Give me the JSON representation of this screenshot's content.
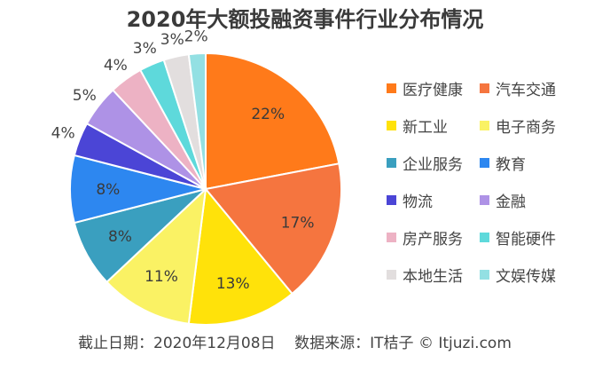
{
  "chart_data": {
    "type": "pie",
    "title": "2020年大额投融资事件行业分布情况",
    "unit": "%",
    "legend_position": "right",
    "slices": [
      {
        "label": "医疗健康",
        "value": 22,
        "color": "#FF7A1A"
      },
      {
        "label": "汽车交通",
        "value": 17,
        "color": "#F5753F"
      },
      {
        "label": "新工业",
        "value": 13,
        "color": "#FFE20A"
      },
      {
        "label": "电子商务",
        "value": 11,
        "color": "#FAF264"
      },
      {
        "label": "企业服务",
        "value": 8,
        "color": "#3A9FBF"
      },
      {
        "label": "教育",
        "value": 8,
        "color": "#2D87F0"
      },
      {
        "label": "物流",
        "value": 4,
        "color": "#4B45D6"
      },
      {
        "label": "金融",
        "value": 5,
        "color": "#AE92E6"
      },
      {
        "label": "房产服务",
        "value": 4,
        "color": "#EDB2C4"
      },
      {
        "label": "智能硬件",
        "value": 3,
        "color": "#5ED9DB"
      },
      {
        "label": "本地生活",
        "value": 3,
        "color": "#E2DEDE"
      },
      {
        "label": "文娱传媒",
        "value": 2,
        "color": "#93E0E3"
      }
    ]
  },
  "footer": "截止日期：2020年12月08日    数据来源：IT桔子 © Itjuzi.com"
}
